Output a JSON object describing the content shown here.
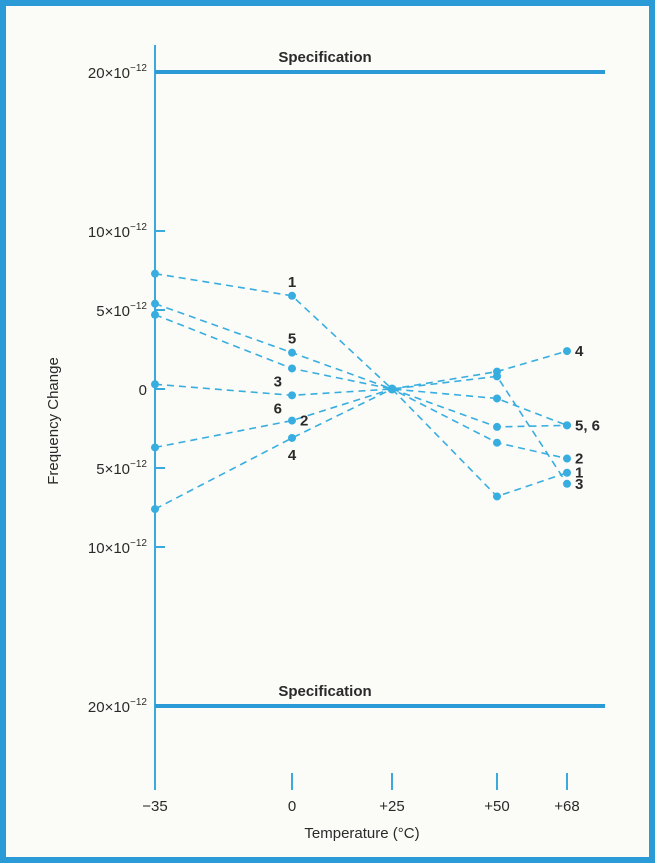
{
  "chart_data": {
    "type": "line",
    "xlabel": "Temperature (°C)",
    "ylabel": "Frequency Change",
    "x": [
      -35,
      0,
      25,
      50,
      68
    ],
    "x_tick_labels": [
      "−35",
      "0",
      "+25",
      "+50",
      "+68"
    ],
    "y_ticks": [
      {
        "value": 2e-11,
        "mantissa": "20",
        "exponent": "−12"
      },
      {
        "value": 1e-11,
        "mantissa": "10",
        "exponent": "−12"
      },
      {
        "value": 5e-12,
        "mantissa": "5",
        "exponent": "−12"
      },
      {
        "value": 0,
        "mantissa": "0",
        "exponent": ""
      },
      {
        "value": -5e-12,
        "mantissa": "5",
        "exponent": "−12"
      },
      {
        "value": -1e-11,
        "mantissa": "10",
        "exponent": "−12"
      },
      {
        "value": -2e-11,
        "mantissa": "20",
        "exponent": "−12"
      }
    ],
    "ylim": [
      -2.5e-11,
      2.5e-11
    ],
    "line_color": "#38aee0",
    "axis_color": "#3aa9dc",
    "frame_color": "#2a9bd6",
    "spec_limits": [
      {
        "label": "Specification",
        "value": 2e-11
      },
      {
        "label": "Specification",
        "value": -2e-11
      }
    ],
    "series": [
      {
        "name": "1",
        "values": [
          7.3e-12,
          5.9e-12,
          0,
          -6.8e-12,
          -5.3e-12
        ]
      },
      {
        "name": "2",
        "values": [
          -3.7e-12,
          -2e-12,
          0,
          -3.4e-12,
          -4.4e-12
        ]
      },
      {
        "name": "3",
        "values": [
          4.7e-12,
          1.3e-12,
          0,
          8e-13,
          -6e-12
        ]
      },
      {
        "name": "4",
        "values": [
          -7.6e-12,
          -3.1e-12,
          0,
          1.1e-12,
          2.4e-12
        ]
      },
      {
        "name": "5",
        "values": [
          5.4e-12,
          2.3e-12,
          0,
          -2.4e-12,
          -2.3e-12
        ]
      },
      {
        "name": "6",
        "values": [
          3e-13,
          -4e-13,
          0,
          -6e-13,
          -2.3e-12
        ]
      }
    ],
    "point_labels": [
      {
        "text": "1",
        "series": 0,
        "index": 1,
        "pos": "above"
      },
      {
        "text": "5",
        "series": 4,
        "index": 1,
        "pos": "above"
      },
      {
        "text": "3",
        "series": 2,
        "index": 1,
        "pos": "left-below"
      },
      {
        "text": "6",
        "series": 5,
        "index": 1,
        "pos": "left-below"
      },
      {
        "text": "2",
        "series": 1,
        "index": 1,
        "pos": "right"
      },
      {
        "text": "4",
        "series": 3,
        "index": 1,
        "pos": "below"
      },
      {
        "text": "4",
        "series": 3,
        "index": 4,
        "pos": "right"
      },
      {
        "text": "5, 6",
        "series": 4,
        "index": 4,
        "pos": "right"
      },
      {
        "text": "2",
        "series": 1,
        "index": 4,
        "pos": "right"
      },
      {
        "text": "1",
        "series": 0,
        "index": 4,
        "pos": "right"
      },
      {
        "text": "3",
        "series": 2,
        "index": 4,
        "pos": "right"
      }
    ]
  }
}
